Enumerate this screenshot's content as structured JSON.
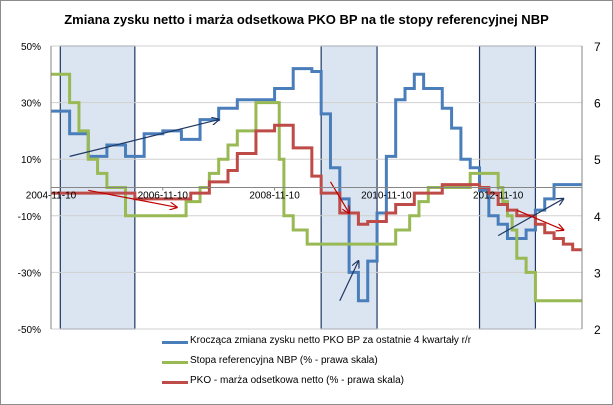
{
  "chart_data": {
    "type": "line",
    "title": "Zmiana zysku netto i marża odsetkowa PKO BP na tle stopy referencyjnej NBP",
    "x_tick_labels": [
      "2004-11-10",
      "2006-11-10",
      "2008-11-10",
      "2010-11-10",
      "2012-11-10"
    ],
    "x_range": [
      "2004-11",
      "2014-05"
    ],
    "left_axis": {
      "ticks": [
        "-50%",
        "-30%",
        "-10%",
        "10%",
        "30%",
        "50%"
      ],
      "ylim": [
        -50,
        50
      ],
      "unit": "%"
    },
    "right_axis": {
      "ticks": [
        "2",
        "3",
        "4",
        "5",
        "6",
        "7"
      ],
      "ylim": [
        2,
        7
      ]
    },
    "series": [
      {
        "name": "Krocząca zmiana zysku netto PKO BP za ostatnie  4 kwartały r/r",
        "axis": "left",
        "color": "#4a7ebb",
        "points": [
          [
            "2004-11",
            27
          ],
          [
            "2005-03",
            19
          ],
          [
            "2005-07",
            11
          ],
          [
            "2005-11",
            15
          ],
          [
            "2006-03",
            11
          ],
          [
            "2006-07",
            19
          ],
          [
            "2006-11",
            20
          ],
          [
            "2007-03",
            17
          ],
          [
            "2007-07",
            24
          ],
          [
            "2007-11",
            28
          ],
          [
            "2008-03",
            31
          ],
          [
            "2008-07",
            31
          ],
          [
            "2008-11",
            35
          ],
          [
            "2009-03",
            42
          ],
          [
            "2009-07",
            41
          ],
          [
            "2009-09",
            26
          ],
          [
            "2009-11",
            7
          ],
          [
            "2010-01",
            -4
          ],
          [
            "2010-03",
            -30
          ],
          [
            "2010-05",
            -40
          ],
          [
            "2010-07",
            -26
          ],
          [
            "2010-09",
            -9
          ],
          [
            "2010-11",
            11
          ],
          [
            "2011-01",
            31
          ],
          [
            "2011-03",
            35
          ],
          [
            "2011-05",
            40
          ],
          [
            "2011-07",
            35
          ],
          [
            "2011-11",
            28
          ],
          [
            "2012-01",
            21
          ],
          [
            "2012-03",
            10
          ],
          [
            "2012-05",
            7
          ],
          [
            "2012-07",
            -1
          ],
          [
            "2012-09",
            -10
          ],
          [
            "2012-11",
            -13
          ],
          [
            "2013-01",
            -18
          ],
          [
            "2013-05",
            -15
          ],
          [
            "2013-07",
            -8
          ],
          [
            "2013-09",
            -4
          ],
          [
            "2013-11",
            1
          ],
          [
            "2014-01",
            1
          ]
        ]
      },
      {
        "name": "Stopa referencyjna NBP (% - prawa skala)",
        "axis": "right",
        "color": "#98b954",
        "points": [
          [
            "2004-11",
            6.5
          ],
          [
            "2005-03",
            6.0
          ],
          [
            "2005-05",
            5.5
          ],
          [
            "2005-07",
            5.0
          ],
          [
            "2005-09",
            4.75
          ],
          [
            "2005-11",
            4.5
          ],
          [
            "2006-03",
            4.0
          ],
          [
            "2007-04",
            4.25
          ],
          [
            "2007-07",
            4.5
          ],
          [
            "2007-09",
            4.75
          ],
          [
            "2007-11",
            5.0
          ],
          [
            "2008-01",
            5.25
          ],
          [
            "2008-03",
            5.5
          ],
          [
            "2008-07",
            6.0
          ],
          [
            "2008-12",
            5.0
          ],
          [
            "2009-01",
            4.0
          ],
          [
            "2009-03",
            3.75
          ],
          [
            "2009-06",
            3.5
          ],
          [
            "2011-01",
            3.75
          ],
          [
            "2011-04",
            4.0
          ],
          [
            "2011-06",
            4.25
          ],
          [
            "2011-08",
            4.5
          ],
          [
            "2012-05",
            4.75
          ],
          [
            "2012-11",
            4.5
          ],
          [
            "2012-12",
            4.25
          ],
          [
            "2013-01",
            4.0
          ],
          [
            "2013-02",
            3.75
          ],
          [
            "2013-03",
            3.25
          ],
          [
            "2013-05",
            3.0
          ],
          [
            "2013-07",
            2.5
          ],
          [
            "2014-05",
            2.5
          ]
        ]
      },
      {
        "name": "PKO - marża odsetkowa netto (% - prawa skala)",
        "axis": "right",
        "color": "#be4b48",
        "points": [
          [
            "2004-11",
            4.4
          ],
          [
            "2006-05",
            4.3
          ],
          [
            "2007-05",
            4.4
          ],
          [
            "2007-09",
            4.6
          ],
          [
            "2008-01",
            4.8
          ],
          [
            "2008-03",
            5.1
          ],
          [
            "2008-07",
            5.5
          ],
          [
            "2008-11",
            5.6
          ],
          [
            "2009-03",
            5.2
          ],
          [
            "2009-07",
            4.7
          ],
          [
            "2009-09",
            4.4
          ],
          [
            "2010-01",
            4.05
          ],
          [
            "2010-05",
            3.85
          ],
          [
            "2010-07",
            3.9
          ],
          [
            "2010-11",
            4.05
          ],
          [
            "2011-01",
            4.2
          ],
          [
            "2011-05",
            4.4
          ],
          [
            "2011-11",
            4.55
          ],
          [
            "2012-07",
            4.5
          ],
          [
            "2012-09",
            4.4
          ],
          [
            "2012-11",
            4.2
          ],
          [
            "2013-01",
            4.1
          ],
          [
            "2013-03",
            4.0
          ],
          [
            "2013-07",
            3.85
          ],
          [
            "2013-09",
            3.7
          ],
          [
            "2013-11",
            3.6
          ],
          [
            "2014-01",
            3.5
          ],
          [
            "2014-03",
            3.4
          ],
          [
            "2014-05",
            3.4
          ]
        ]
      }
    ],
    "shaded_periods": [
      [
        "2005-01",
        "2006-05"
      ],
      [
        "2009-09",
        "2010-09"
      ],
      [
        "2012-07",
        "2013-07"
      ]
    ],
    "annotation_arrows": [
      {
        "color": "#1f3864",
        "from": [
          "2005-03",
          11
        ],
        "to": [
          "2007-11",
          24
        ],
        "axis": "left"
      },
      {
        "color": "#1f3864",
        "from": [
          "2010-01",
          -40
        ],
        "to": [
          "2010-05",
          -26
        ],
        "axis": "left"
      },
      {
        "color": "#1f3864",
        "from": [
          "2012-11",
          -17
        ],
        "to": [
          "2014-01",
          -4
        ],
        "axis": "left"
      },
      {
        "color": "#c00000",
        "from": [
          "2005-07",
          4.45
        ],
        "to": [
          "2007-02",
          4.15
        ],
        "axis": "right"
      },
      {
        "color": "#c00000",
        "from": [
          "2009-11",
          4.6
        ],
        "to": [
          "2010-03",
          4.05
        ],
        "axis": "right"
      },
      {
        "color": "#c00000",
        "from": [
          "2013-03",
          4.1
        ],
        "to": [
          "2014-01",
          3.75
        ],
        "axis": "right"
      }
    ],
    "grid": true,
    "legend_position": "bottom"
  }
}
